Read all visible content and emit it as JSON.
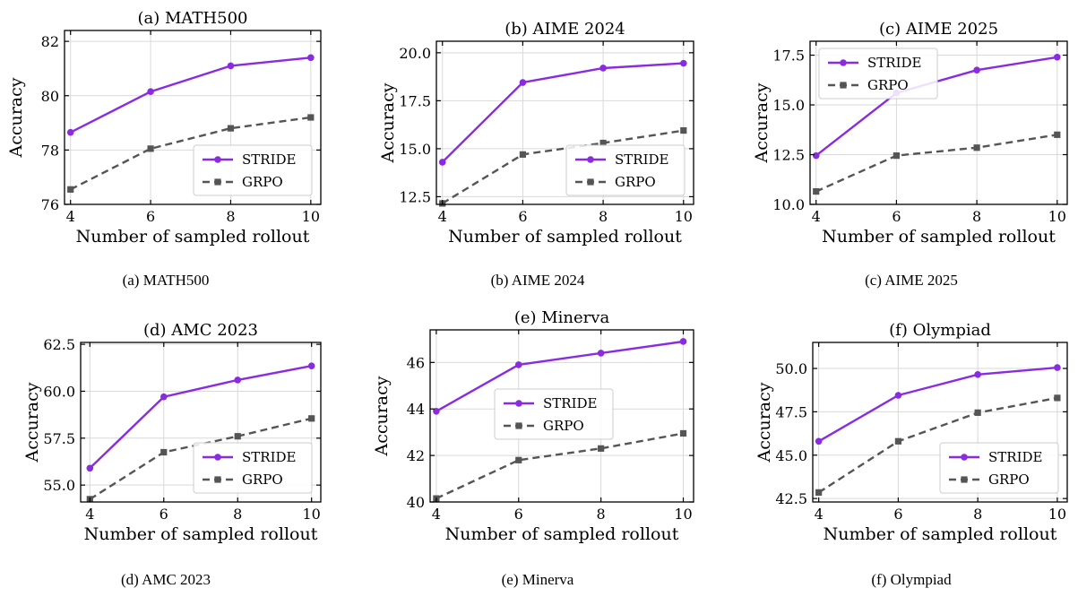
{
  "colors": {
    "stride": "#8a2be2",
    "grpo": "#555555",
    "grid": "#d9d9d9"
  },
  "chart_data": [
    {
      "type": "line",
      "title": "(a) MATH500",
      "caption": "(a) MATH500",
      "xlabel": "Number of sampled rollout",
      "ylabel": "Accuracy",
      "x": [
        4,
        6,
        8,
        10
      ],
      "xticks": [
        "4",
        "6",
        "8",
        "10"
      ],
      "xlim": [
        3.85,
        10.25
      ],
      "yticks": [
        76,
        78,
        80,
        82
      ],
      "ytick_labels": [
        "76",
        "78",
        "80",
        "82"
      ],
      "ylim": [
        76,
        82.4
      ],
      "legend_position": "lower-right",
      "grid": true,
      "series": [
        {
          "name": "STRIDE",
          "values": [
            78.65,
            80.15,
            81.1,
            81.4
          ],
          "style": "solid",
          "marker": "circle"
        },
        {
          "name": "GRPO",
          "values": [
            76.55,
            78.05,
            78.8,
            79.2
          ],
          "style": "dashed",
          "marker": "square"
        }
      ]
    },
    {
      "type": "line",
      "title": "(b) AIME 2024",
      "caption": "(b) AIME 2024",
      "xlabel": "Number of sampled rollout",
      "ylabel": "Accuracy",
      "x": [
        4,
        6,
        8,
        10
      ],
      "xticks": [
        "4",
        "6",
        "8",
        "10"
      ],
      "xlim": [
        3.85,
        10.25
      ],
      "yticks": [
        12.5,
        15.0,
        17.5,
        20.0
      ],
      "ytick_labels": [
        "12.5",
        "15.0",
        "17.5",
        "20.0"
      ],
      "ylim": [
        12.1,
        20.6
      ],
      "legend_position": "lower-right",
      "grid": true,
      "series": [
        {
          "name": "STRIDE",
          "values": [
            14.3,
            18.45,
            19.2,
            19.45
          ],
          "style": "solid",
          "marker": "circle"
        },
        {
          "name": "GRPO",
          "values": [
            12.15,
            14.7,
            15.3,
            15.95
          ],
          "style": "dashed",
          "marker": "square"
        }
      ]
    },
    {
      "type": "line",
      "title": "(c) AIME 2025",
      "caption": "(c) AIME 2025",
      "xlabel": "Number of sampled rollout",
      "ylabel": "Accuracy",
      "x": [
        4,
        6,
        8,
        10
      ],
      "xticks": [
        "4",
        "6",
        "8",
        "10"
      ],
      "xlim": [
        3.85,
        10.25
      ],
      "yticks": [
        10.0,
        12.5,
        15.0,
        17.5
      ],
      "ytick_labels": [
        "10.0",
        "12.5",
        "15.0",
        "17.5"
      ],
      "ylim": [
        10.0,
        18.2
      ],
      "legend_position": "upper-left",
      "grid": true,
      "series": [
        {
          "name": "STRIDE",
          "values": [
            12.45,
            15.6,
            16.75,
            17.4
          ],
          "style": "solid",
          "marker": "circle"
        },
        {
          "name": "GRPO",
          "values": [
            10.65,
            12.45,
            12.85,
            13.5
          ],
          "style": "dashed",
          "marker": "square"
        }
      ]
    },
    {
      "type": "line",
      "title": "(d) AMC 2023",
      "caption": "(d) AMC 2023",
      "xlabel": "Number of sampled rollout",
      "ylabel": "Accuracy",
      "x": [
        4,
        6,
        8,
        10
      ],
      "xticks": [
        "4",
        "6",
        "8",
        "10"
      ],
      "xlim": [
        3.75,
        10.25
      ],
      "yticks": [
        55.0,
        57.5,
        60.0,
        62.5
      ],
      "ytick_labels": [
        "55.0",
        "57.5",
        "60.0",
        "62.5"
      ],
      "ylim": [
        54.1,
        62.6
      ],
      "legend_position": "lower-right",
      "grid": true,
      "series": [
        {
          "name": "STRIDE",
          "values": [
            55.9,
            59.7,
            60.6,
            61.35
          ],
          "style": "solid",
          "marker": "circle"
        },
        {
          "name": "GRPO",
          "values": [
            54.25,
            56.75,
            57.6,
            58.55
          ],
          "style": "dashed",
          "marker": "square"
        }
      ]
    },
    {
      "type": "line",
      "title": "(e) Minerva",
      "caption": "(e) Minerva",
      "xlabel": "Number of sampled rollout",
      "ylabel": "Accuracy",
      "x": [
        4,
        6,
        8,
        10
      ],
      "xticks": [
        "4",
        "6",
        "8",
        "10"
      ],
      "xlim": [
        3.85,
        10.25
      ],
      "yticks": [
        40,
        42,
        44,
        46
      ],
      "ytick_labels": [
        "40",
        "42",
        "44",
        "46"
      ],
      "ylim": [
        40.0,
        47.4
      ],
      "legend_position": "center",
      "grid": true,
      "series": [
        {
          "name": "STRIDE",
          "values": [
            43.9,
            45.9,
            46.4,
            46.9
          ],
          "style": "solid",
          "marker": "circle"
        },
        {
          "name": "GRPO",
          "values": [
            40.15,
            41.8,
            42.3,
            42.95
          ],
          "style": "dashed",
          "marker": "square"
        }
      ]
    },
    {
      "type": "line",
      "title": "(f) Olympiad",
      "caption": "(f) Olympiad",
      "xlabel": "Number of sampled rollout",
      "ylabel": "Accuracy",
      "x": [
        4,
        6,
        8,
        10
      ],
      "xticks": [
        "4",
        "6",
        "8",
        "10"
      ],
      "xlim": [
        3.85,
        10.25
      ],
      "yticks": [
        42.5,
        45.0,
        47.5,
        50.0
      ],
      "ytick_labels": [
        "42.5",
        "45.0",
        "47.5",
        "50.0"
      ],
      "ylim": [
        42.3,
        51.5
      ],
      "legend_position": "lower-right",
      "grid": true,
      "series": [
        {
          "name": "STRIDE",
          "values": [
            45.8,
            48.45,
            49.65,
            50.05
          ],
          "style": "solid",
          "marker": "circle"
        },
        {
          "name": "GRPO",
          "values": [
            42.85,
            45.8,
            47.45,
            48.3
          ],
          "style": "dashed",
          "marker": "square"
        }
      ]
    }
  ]
}
